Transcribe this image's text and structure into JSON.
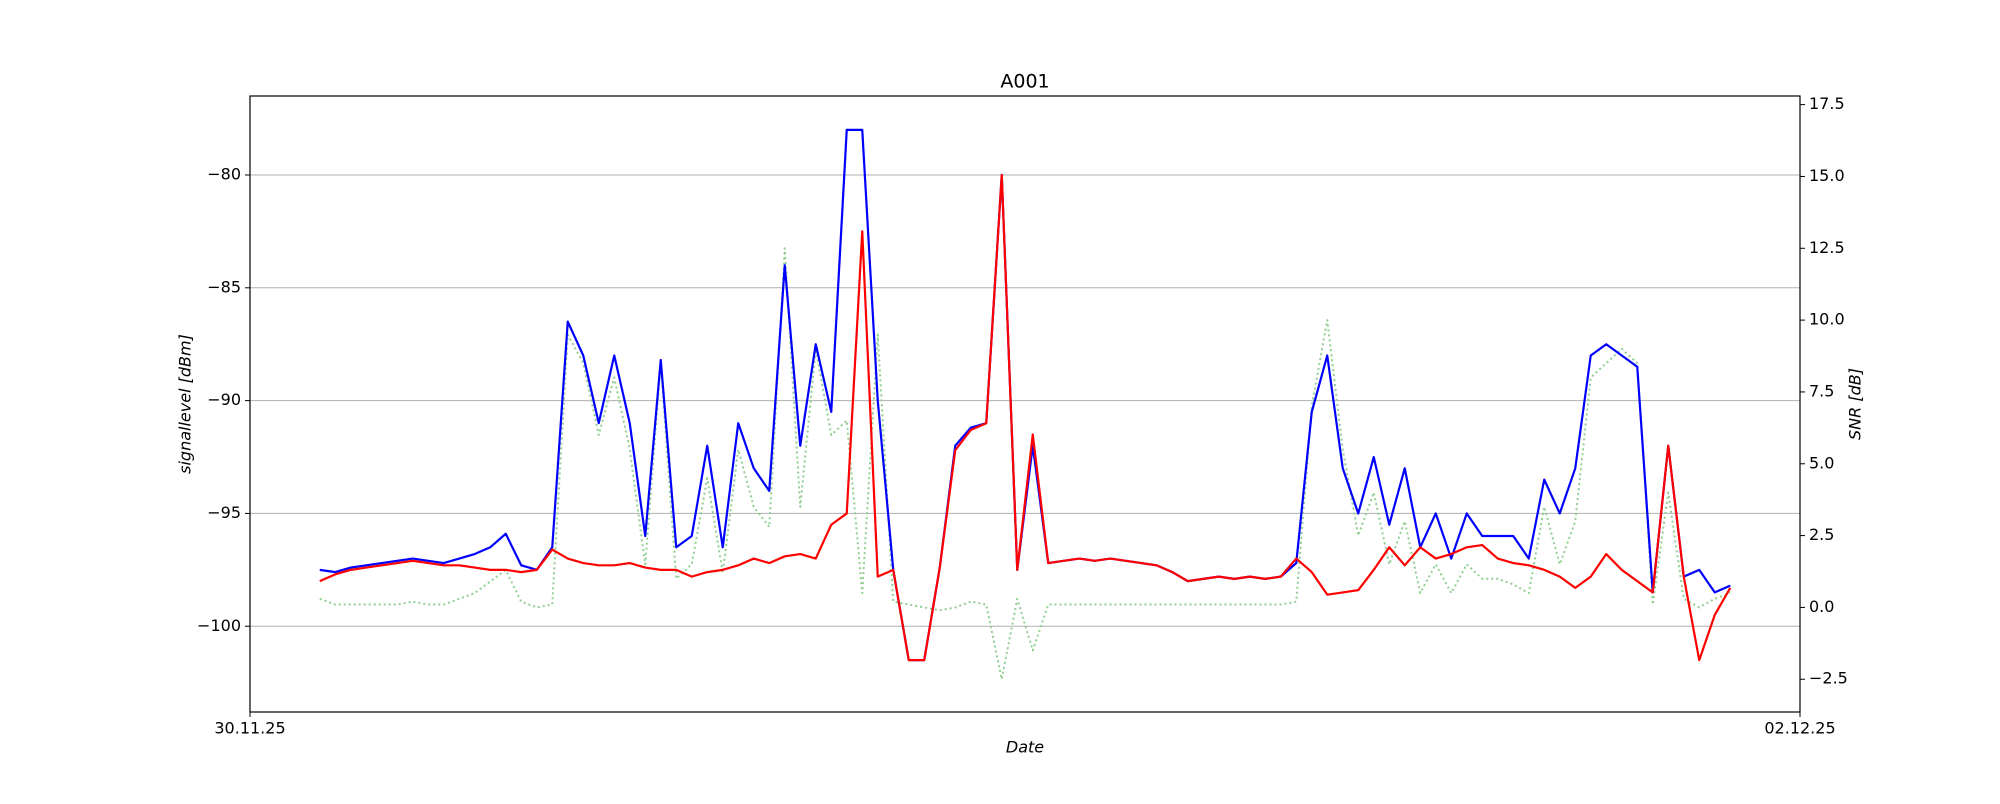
{
  "chart_data": {
    "type": "line",
    "title": "A001",
    "x_label": "Date",
    "y_label": "signallevel [dBm]",
    "y2_label": "SNR [dB]",
    "xlim": [
      0,
      2
    ],
    "xticks": [
      {
        "value": 0,
        "label": "30.11.25"
      },
      {
        "value": 2,
        "label": "02.12.25"
      }
    ],
    "ylim": [
      -103.8,
      -76.5
    ],
    "yticks": [
      {
        "value": -100,
        "label": "−100"
      },
      {
        "value": -95,
        "label": "−95"
      },
      {
        "value": -90,
        "label": "−90"
      },
      {
        "value": -85,
        "label": "−85"
      },
      {
        "value": -80,
        "label": "−80"
      }
    ],
    "y2lim": [
      -3.64,
      17.8
    ],
    "y2ticks": [
      {
        "value": -2.5,
        "label": "−2.5"
      },
      {
        "value": 0,
        "label": "0.0"
      },
      2.5,
      {
        "value": 5,
        "label": "5.0"
      },
      7.5,
      {
        "value": 10,
        "label": "10.0"
      },
      12.5,
      {
        "value": 15,
        "label": "15.0"
      },
      17.5
    ],
    "grid": true,
    "x": [
      0.09,
      0.11,
      0.13,
      0.15,
      0.17,
      0.19,
      0.21,
      0.23,
      0.25,
      0.27,
      0.29,
      0.31,
      0.33,
      0.35,
      0.37,
      0.39,
      0.41,
      0.43,
      0.45,
      0.47,
      0.49,
      0.51,
      0.53,
      0.55,
      0.57,
      0.59,
      0.61,
      0.63,
      0.65,
      0.67,
      0.69,
      0.71,
      0.73,
      0.75,
      0.77,
      0.79,
      0.81,
      0.83,
      0.85,
      0.87,
      0.89,
      0.91,
      0.93,
      0.95,
      0.97,
      0.99,
      1.01,
      1.03,
      1.05,
      1.07,
      1.09,
      1.11,
      1.13,
      1.15,
      1.17,
      1.19,
      1.21,
      1.23,
      1.25,
      1.27,
      1.29,
      1.31,
      1.33,
      1.35,
      1.37,
      1.39,
      1.41,
      1.43,
      1.45,
      1.47,
      1.49,
      1.51,
      1.53,
      1.55,
      1.57,
      1.59,
      1.61,
      1.63,
      1.65,
      1.67,
      1.69,
      1.71,
      1.73,
      1.75,
      1.77,
      1.79,
      1.81,
      1.83,
      1.85,
      1.87,
      1.89,
      1.91
    ],
    "series": [
      {
        "color": "#0000ff",
        "linestyle": "solid",
        "axis": "y",
        "values": [
          -97.5,
          -97.6,
          -97.4,
          -97.3,
          -97.2,
          -97.1,
          -97.0,
          -97.1,
          -97.2,
          -97.0,
          -96.8,
          -96.5,
          -95.9,
          -97.3,
          -97.5,
          -96.5,
          -86.5,
          -88,
          -91,
          -88,
          -91,
          -96,
          -88.2,
          -96.5,
          -96,
          -92,
          -96.5,
          -91,
          -93,
          -94,
          -84,
          -92,
          -87.5,
          -90.5,
          -78,
          -78,
          -90,
          -97.5,
          -101.5,
          -101.5,
          -97.4,
          -92,
          -91.2,
          -91,
          -80,
          -97.5,
          -92,
          -97.2,
          -97.1,
          -97.0,
          -97.1,
          -97.0,
          -97.1,
          -97.2,
          -97.3,
          -97.6,
          -98.0,
          -97.9,
          -97.8,
          -97.9,
          -97.8,
          -97.9,
          -97.8,
          -97.2,
          -90.5,
          -88,
          -93,
          -95,
          -92.5,
          -95.5,
          -93,
          -96.5,
          -95,
          -97,
          -95,
          -96,
          -96,
          -96,
          -97,
          -93.5,
          -95,
          -93,
          -88,
          -87.5,
          -88,
          -88.5,
          -98.5,
          -92,
          -97.8,
          -97.5,
          -98.5,
          -98.2
        ]
      },
      {
        "color": "#ff0000",
        "linestyle": "solid",
        "axis": "y",
        "values": [
          -98,
          -97.7,
          -97.5,
          -97.4,
          -97.3,
          -97.2,
          -97.1,
          -97.2,
          -97.3,
          -97.3,
          -97.4,
          -97.5,
          -97.5,
          -97.6,
          -97.5,
          -96.6,
          -97.0,
          -97.2,
          -97.3,
          -97.3,
          -97.2,
          -97.4,
          -97.5,
          -97.5,
          -97.8,
          -97.6,
          -97.5,
          -97.3,
          -97.0,
          -97.2,
          -96.9,
          -96.8,
          -97,
          -95.5,
          -95.0,
          -82.5,
          -97.8,
          -97.5,
          -101.5,
          -101.5,
          -97.4,
          -92.2,
          -91.3,
          -91.0,
          -80,
          -97.5,
          -91.5,
          -97.2,
          -97.1,
          -97.0,
          -97.1,
          -97.0,
          -97.1,
          -97.2,
          -97.3,
          -97.6,
          -98.0,
          -97.9,
          -97.8,
          -97.9,
          -97.8,
          -97.9,
          -97.8,
          -97.0,
          -97.6,
          -98.6,
          -98.5,
          -98.4,
          -97.5,
          -96.5,
          -97.3,
          -96.5,
          -97.0,
          -96.8,
          -96.5,
          -96.4,
          -97,
          -97.2,
          -97.3,
          -97.5,
          -97.8,
          -98.3,
          -97.8,
          -96.8,
          -97.5,
          -98,
          -98.5,
          -92.0,
          -97.8,
          -101.5,
          -99.5,
          -98.3
        ]
      },
      {
        "color": "#90cf90",
        "linestyle": "dotted",
        "axis": "y2",
        "values": [
          0.3,
          0.1,
          0.1,
          0.1,
          0.1,
          0.1,
          0.2,
          0.1,
          0.1,
          0.3,
          0.5,
          0.9,
          1.3,
          0.2,
          0.0,
          0.1,
          9.5,
          8.5,
          6,
          8,
          5.5,
          1.5,
          8.5,
          1,
          1.5,
          4.5,
          1.2,
          5.5,
          3.5,
          2.8,
          12.5,
          3.5,
          9,
          6,
          6.5,
          0.5,
          9.5,
          0.2,
          0.1,
          0.0,
          -0.1,
          0.0,
          0.2,
          0.1,
          -2.5,
          0.3,
          -1.5,
          0.1,
          0.1,
          0.1,
          0.1,
          0.1,
          0.1,
          0.1,
          0.1,
          0.1,
          0.1,
          0.1,
          0.1,
          0.1,
          0.1,
          0.1,
          0.1,
          0.2,
          7,
          10,
          5.5,
          2.5,
          4,
          1.5,
          3,
          0.5,
          1.5,
          0.5,
          1.5,
          1,
          1,
          0.8,
          0.5,
          3.5,
          1.5,
          3,
          8,
          8.5,
          9,
          8.5,
          0.1,
          4,
          0.3,
          0,
          0.3,
          0.5
        ]
      }
    ]
  }
}
